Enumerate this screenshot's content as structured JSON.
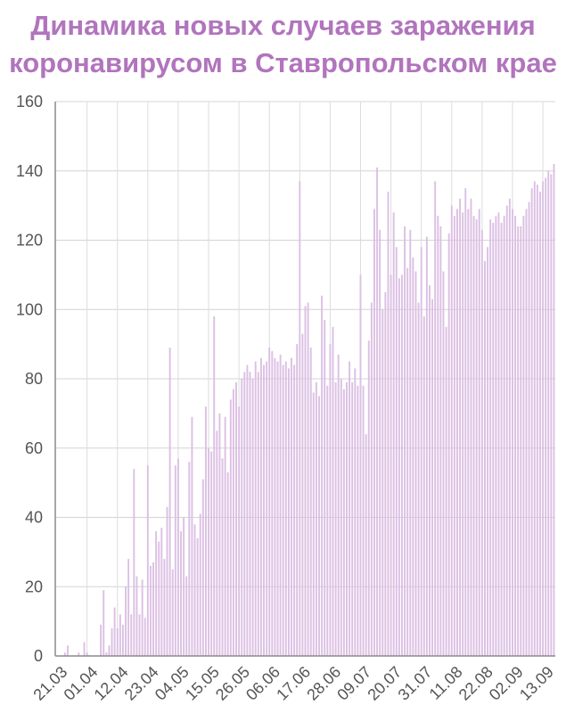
{
  "title": {
    "line1": "Динамика новых случаев заражения",
    "line2": "коронавирусом в Ставропольском крае"
  },
  "colors": {
    "title": "#b174bd",
    "bar_fill": "#dcc0e4",
    "bar_stroke": "#b98ac6",
    "grid": "#d4d4d4",
    "tick_text": "#555555"
  },
  "chart_data": {
    "type": "bar",
    "title": "Динамика новых случаев заражения коронавирусом в Ставропольском крае",
    "xlabel": "",
    "ylabel": "",
    "ylim": [
      0,
      160
    ],
    "yticks": [
      0,
      20,
      40,
      60,
      80,
      100,
      120,
      140,
      160
    ],
    "grid": true,
    "legend": "none",
    "start_date": "21.03",
    "x_tick_labels": [
      "21.03",
      "01.04",
      "12.04",
      "23.04",
      "04.05",
      "15.05",
      "26.05",
      "06.06",
      "17.06",
      "28.06",
      "09.07",
      "20.07",
      "31.07",
      "11.08",
      "22.08",
      "02.09",
      "13.09"
    ],
    "values": [
      0,
      0,
      0,
      1,
      3,
      0,
      0,
      0,
      1,
      0,
      4,
      1,
      0,
      0,
      0,
      0,
      9,
      19,
      1,
      3,
      8,
      14,
      8,
      12,
      9,
      20,
      28,
      12,
      54,
      23,
      12,
      22,
      11,
      55,
      26,
      27,
      36,
      33,
      37,
      28,
      43,
      89,
      25,
      55,
      57,
      36,
      40,
      23,
      56,
      69,
      38,
      34,
      41,
      51,
      72,
      60,
      59,
      98,
      65,
      70,
      57,
      69,
      53,
      74,
      77,
      79,
      72,
      80,
      82,
      84,
      82,
      80,
      85,
      82,
      86,
      84,
      85,
      89,
      88,
      86,
      85,
      87,
      84,
      85,
      83,
      86,
      84,
      90,
      137,
      93,
      101,
      102,
      89,
      76,
      79,
      75,
      104,
      97,
      78,
      90,
      95,
      79,
      87,
      80,
      77,
      79,
      85,
      79,
      83,
      78,
      110,
      78,
      64,
      91,
      102,
      129,
      141,
      123,
      100,
      105,
      134,
      110,
      128,
      118,
      109,
      110,
      124,
      112,
      123,
      115,
      111,
      102,
      118,
      98,
      121,
      107,
      103,
      137,
      127,
      124,
      111,
      95,
      122,
      130,
      127,
      129,
      132,
      128,
      135,
      129,
      132,
      127,
      126,
      129,
      123,
      114,
      118,
      126,
      125,
      127,
      128,
      125,
      127,
      130,
      132,
      129,
      127,
      124,
      124,
      127,
      129,
      131,
      135,
      137,
      136,
      134,
      137,
      138,
      140,
      139,
      142
    ]
  }
}
